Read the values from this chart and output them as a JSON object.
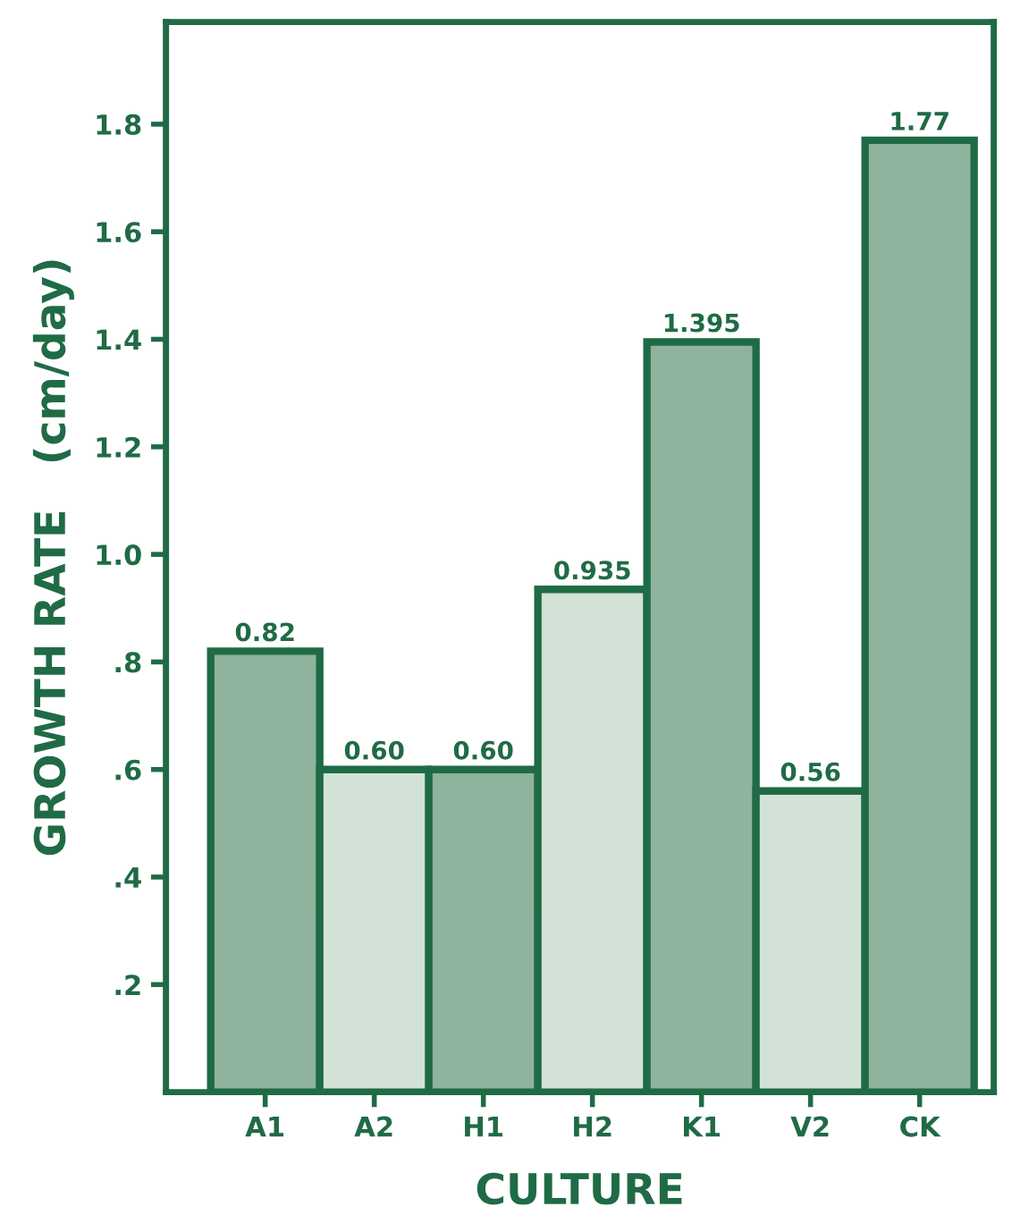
{
  "chart_data": {
    "type": "bar",
    "xlabel": "CULTURE",
    "ylabel": "GROWTH RATE   (cm/day)",
    "categories": [
      "A1",
      "A2",
      "H1",
      "H2",
      "K1",
      "V2",
      "CK"
    ],
    "values": [
      0.82,
      0.6,
      0.6,
      0.935,
      1.395,
      0.56,
      1.77
    ],
    "value_labels": [
      "0.82",
      "0.60",
      "0.60",
      "0.935",
      "1.395",
      "0.56",
      "1.77"
    ],
    "colors": [
      "#8fb39c",
      "#d3e2d6",
      "#8fb39c",
      "#d3e2d6",
      "#8fb39c",
      "#d3e2d6",
      "#8fb39c"
    ],
    "ylim": [
      0,
      1.99
    ],
    "yticks": [
      {
        "value": 0.2,
        "label": ".2"
      },
      {
        "value": 0.4,
        "label": ".4"
      },
      {
        "value": 0.6,
        "label": ".6"
      },
      {
        "value": 0.8,
        "label": ".8"
      },
      {
        "value": 1.0,
        "label": "1.0"
      },
      1.2,
      1.4,
      1.6,
      1.8
    ],
    "grid": false
  }
}
